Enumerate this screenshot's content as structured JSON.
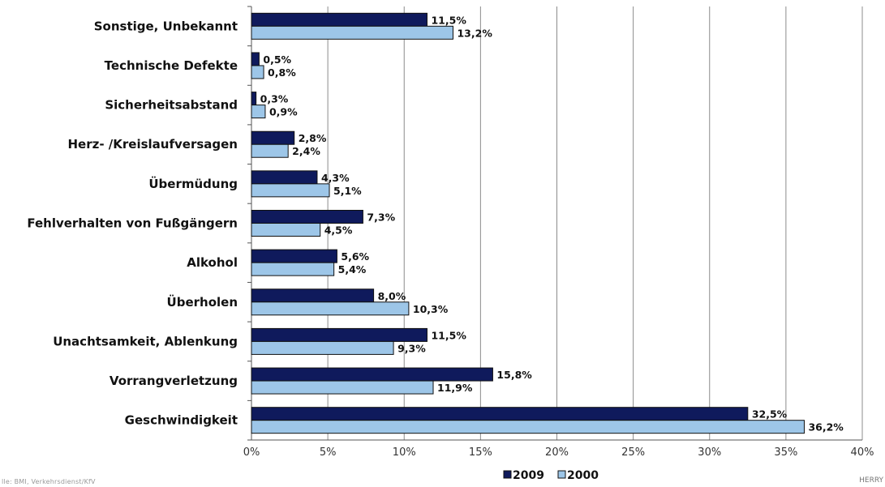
{
  "chart_data": {
    "type": "bar",
    "orientation": "horizontal",
    "categories": [
      "Sonstige, Unbekannt",
      "Technische Defekte",
      "Sicherheitsabstand",
      "Herz- /Kreislaufversagen",
      "Übermüdung",
      "Fehlverhalten von Fußgängern",
      "Alkohol",
      "Überholen",
      "Unachtsamkeit, Ablenkung",
      "Vorrangverletzung",
      "Geschwindigkeit"
    ],
    "series": [
      {
        "name": "2009",
        "color": "#0f1a5c",
        "values": [
          11.5,
          0.5,
          0.3,
          2.8,
          4.3,
          7.3,
          5.6,
          8.0,
          11.5,
          15.8,
          32.5
        ],
        "labels": [
          "11,5%",
          "0,5%",
          "0,3%",
          "2,8%",
          "4,3%",
          "7,3%",
          "5,6%",
          "8,0%",
          "11,5%",
          "15,8%",
          "32,5%"
        ]
      },
      {
        "name": "2000",
        "color": "#9dc6e8",
        "values": [
          13.2,
          0.8,
          0.9,
          2.4,
          5.1,
          4.5,
          5.4,
          10.3,
          9.3,
          11.9,
          36.2
        ],
        "labels": [
          "13,2%",
          "0,8%",
          "0,9%",
          "2,4%",
          "5,1%",
          "4,5%",
          "5,4%",
          "10,3%",
          "9,3%",
          "11,9%",
          "36,2%"
        ]
      }
    ],
    "xlim": [
      0,
      40
    ],
    "xticks": [
      0,
      5,
      10,
      15,
      20,
      25,
      30,
      35,
      40
    ],
    "xtick_labels": [
      "0%",
      "5%",
      "10%",
      "15%",
      "20%",
      "25%",
      "30%",
      "35%",
      "40%"
    ],
    "grid": "vertical",
    "legend": "bottom-center",
    "title": "",
    "xlabel": "",
    "ylabel": ""
  },
  "footer": {
    "source_left": "lle: BMI, Verkehrsdienst/KfV",
    "source_right": "HERRY"
  }
}
